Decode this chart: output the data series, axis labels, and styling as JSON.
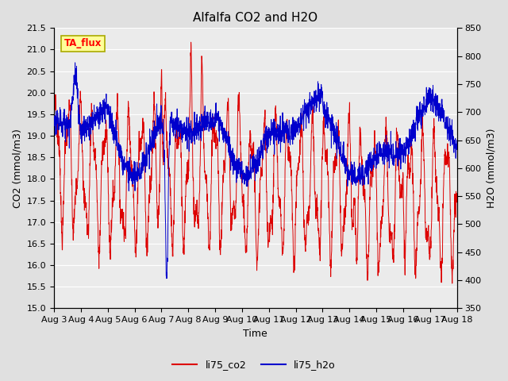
{
  "title": "Alfalfa CO2 and H2O",
  "xlabel": "Time",
  "ylabel_left": "CO2 (mmol/m3)",
  "ylabel_right": "H2O (mmol/m3)",
  "ylim_left": [
    15.0,
    21.5
  ],
  "ylim_right": [
    350,
    850
  ],
  "yticks_left": [
    15.0,
    15.5,
    16.0,
    16.5,
    17.0,
    17.5,
    18.0,
    18.5,
    19.0,
    19.5,
    20.0,
    20.5,
    21.0,
    21.5
  ],
  "yticks_right": [
    350,
    400,
    450,
    500,
    550,
    600,
    650,
    700,
    750,
    800,
    850
  ],
  "xtick_labels": [
    "Aug 3",
    "Aug 4",
    "Aug 5",
    "Aug 6",
    "Aug 7",
    "Aug 8",
    "Aug 9",
    "Aug 10",
    "Aug 11",
    "Aug 12",
    "Aug 13",
    "Aug 14",
    "Aug 15",
    "Aug 16",
    "Aug 17",
    "Aug 18"
  ],
  "color_co2": "#dd0000",
  "color_h2o": "#0000cc",
  "legend_label_co2": "li75_co2",
  "legend_label_h2o": "li75_h2o",
  "annotation_text": "TA_flux",
  "annotation_box_facecolor": "#ffff99",
  "annotation_box_edgecolor": "#aaaa00",
  "fig_bg_color": "#e0e0e0",
  "plot_bg_color": "#ebebeb",
  "grid_color": "#ffffff",
  "title_fontsize": 11,
  "axis_label_fontsize": 9,
  "tick_fontsize": 8
}
